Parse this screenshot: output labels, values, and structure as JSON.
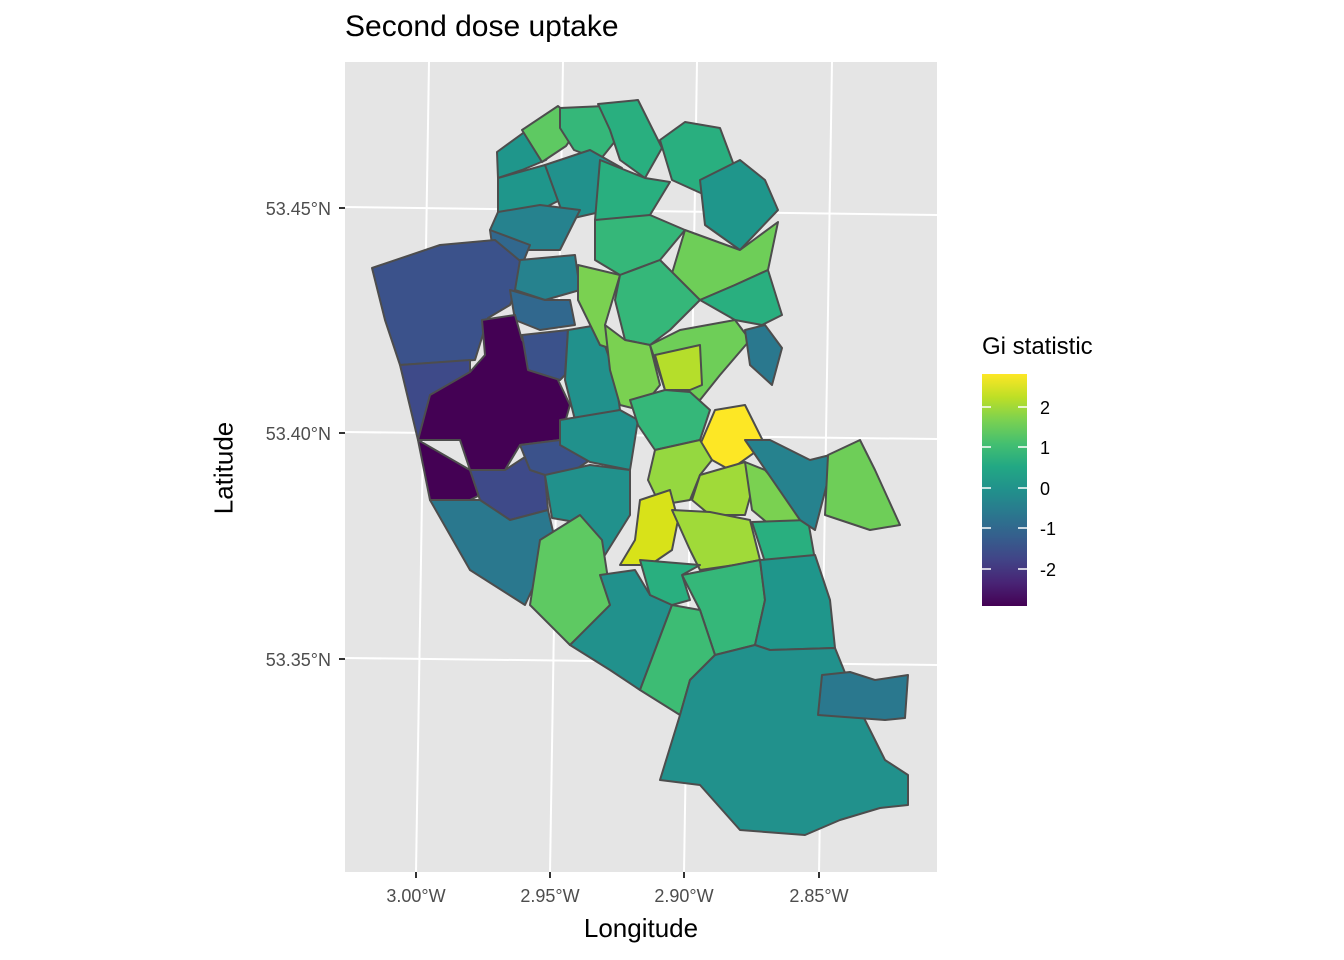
{
  "chart_data": {
    "type": "choropleth",
    "title": "Second dose uptake",
    "xlabel": "Longitude",
    "ylabel": "Latitude",
    "x_ticks": [
      "3.00°W",
      "2.95°W",
      "2.90°W",
      "2.85°W"
    ],
    "y_ticks": [
      "53.45°N",
      "53.40°N",
      "53.35°N"
    ],
    "legend": {
      "title": "Gi statistic",
      "labels": [
        "2",
        "1",
        "0",
        "-1",
        "-2"
      ],
      "range": [
        -2.7,
        2.7
      ],
      "colormap": "viridis"
    },
    "panel_background": "#e5e5e5",
    "grid": true,
    "region_border_color": "#4d4d4d"
  }
}
